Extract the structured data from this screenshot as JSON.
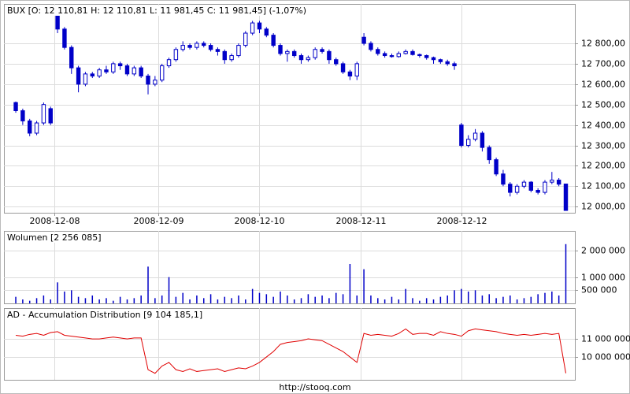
{
  "chart_data": [
    {
      "type": "candlestick",
      "title": "BUX [O: 12 110,81  H: 12 110,81  L: 11 981,45  C: 11 981,45] (-1,07%)",
      "color": "#0000c8",
      "x": [
        0,
        1,
        2,
        3,
        4,
        5,
        6,
        7,
        8,
        9,
        10,
        11,
        12,
        13,
        14,
        15,
        16,
        17,
        18,
        19,
        20,
        21,
        22,
        23,
        24,
        25,
        26,
        27,
        28,
        29,
        30,
        31,
        32,
        33,
        34,
        35,
        36,
        37,
        38,
        39,
        40,
        41,
        42,
        43,
        44,
        45,
        46,
        47,
        48,
        49,
        50,
        51,
        52,
        53,
        54,
        55,
        56,
        57,
        58,
        59,
        60,
        61,
        62,
        63,
        64,
        65,
        66,
        67,
        68,
        69,
        70,
        71,
        72,
        73,
        74,
        75,
        76,
        77,
        78,
        79
      ],
      "candles": [
        [
          12510,
          12515,
          12460,
          12470
        ],
        [
          12470,
          12480,
          12400,
          12420
        ],
        [
          12420,
          12430,
          12345,
          12360
        ],
        [
          12360,
          12420,
          12350,
          12410
        ],
        [
          12410,
          12510,
          12400,
          12500
        ],
        [
          12480,
          12490,
          12400,
          12410
        ],
        [
          12950,
          12960,
          12850,
          12870
        ],
        [
          12870,
          12880,
          12770,
          12780
        ],
        [
          12780,
          12790,
          12650,
          12680
        ],
        [
          12680,
          12690,
          12560,
          12600
        ],
        [
          12600,
          12660,
          12590,
          12650
        ],
        [
          12650,
          12660,
          12630,
          12640
        ],
        [
          12640,
          12680,
          12630,
          12670
        ],
        [
          12670,
          12690,
          12650,
          12660
        ],
        [
          12660,
          12710,
          12650,
          12700
        ],
        [
          12700,
          12710,
          12670,
          12690
        ],
        [
          12690,
          12700,
          12640,
          12650
        ],
        [
          12650,
          12690,
          12640,
          12680
        ],
        [
          12680,
          12690,
          12630,
          12640
        ],
        [
          12640,
          12650,
          12550,
          12600
        ],
        [
          12600,
          12640,
          12590,
          12620
        ],
        [
          12620,
          12700,
          12610,
          12690
        ],
        [
          12690,
          12730,
          12680,
          12720
        ],
        [
          12720,
          12780,
          12710,
          12770
        ],
        [
          12770,
          12810,
          12760,
          12790
        ],
        [
          12790,
          12800,
          12770,
          12780
        ],
        [
          12780,
          12810,
          12770,
          12800
        ],
        [
          12800,
          12810,
          12780,
          12790
        ],
        [
          12790,
          12800,
          12760,
          12770
        ],
        [
          12770,
          12780,
          12740,
          12760
        ],
        [
          12760,
          12770,
          12700,
          12720
        ],
        [
          12720,
          12750,
          12710,
          12740
        ],
        [
          12740,
          12800,
          12730,
          12790
        ],
        [
          12790,
          12860,
          12780,
          12850
        ],
        [
          12850,
          12910,
          12840,
          12900
        ],
        [
          12900,
          12910,
          12850,
          12870
        ],
        [
          12870,
          12880,
          12830,
          12840
        ],
        [
          12840,
          12850,
          12780,
          12790
        ],
        [
          12790,
          12800,
          12740,
          12750
        ],
        [
          12750,
          12770,
          12710,
          12760
        ],
        [
          12760,
          12770,
          12730,
          12740
        ],
        [
          12740,
          12750,
          12700,
          12720
        ],
        [
          12720,
          12740,
          12710,
          12730
        ],
        [
          12730,
          12780,
          12720,
          12770
        ],
        [
          12770,
          12780,
          12750,
          12760
        ],
        [
          12760,
          12770,
          12700,
          12720
        ],
        [
          12720,
          12730,
          12690,
          12700
        ],
        [
          12700,
          12710,
          12650,
          12660
        ],
        [
          12660,
          12670,
          12620,
          12640
        ],
        [
          12640,
          12710,
          12620,
          12700
        ],
        [
          12830,
          12850,
          12790,
          12800
        ],
        [
          12800,
          12810,
          12760,
          12770
        ],
        [
          12770,
          12780,
          12740,
          12750
        ],
        [
          12750,
          12760,
          12730,
          12740
        ],
        [
          12740,
          12750,
          12730,
          12735
        ],
        [
          12735,
          12760,
          12730,
          12750
        ],
        [
          12750,
          12770,
          12745,
          12760
        ],
        [
          12760,
          12770,
          12740,
          12745
        ],
        [
          12745,
          12750,
          12730,
          12740
        ],
        [
          12740,
          12745,
          12720,
          12730
        ],
        [
          12730,
          12735,
          12700,
          12720
        ],
        [
          12720,
          12725,
          12700,
          12710
        ],
        [
          12710,
          12720,
          12690,
          12700
        ],
        [
          12700,
          12710,
          12670,
          12690
        ],
        [
          12400,
          12410,
          12290,
          12300
        ],
        [
          12300,
          12350,
          12290,
          12330
        ],
        [
          12330,
          12380,
          12320,
          12360
        ],
        [
          12360,
          12370,
          12270,
          12290
        ],
        [
          12290,
          12300,
          12210,
          12230
        ],
        [
          12230,
          12240,
          12150,
          12160
        ],
        [
          12160,
          12180,
          12100,
          12110
        ],
        [
          12110,
          12120,
          12050,
          12070
        ],
        [
          12070,
          12110,
          12060,
          12100
        ],
        [
          12100,
          12130,
          12090,
          12120
        ],
        [
          12120,
          12125,
          12070,
          12080
        ],
        [
          12080,
          12090,
          12060,
          12070
        ],
        [
          12070,
          12130,
          12060,
          12120
        ],
        [
          12120,
          12170,
          12110,
          12130
        ],
        [
          12130,
          12140,
          12100,
          12110
        ],
        [
          12110.81,
          12110.81,
          11981.45,
          11981.45
        ]
      ],
      "xlim": [
        -1.7,
        80.3
      ],
      "xticks": [
        {
          "value": 5.5,
          "label": "2008-12-08"
        },
        {
          "value": 20.5,
          "label": "2008-12-09"
        },
        {
          "value": 35,
          "label": "2008-12-10"
        },
        {
          "value": 49.5,
          "label": "2008-12-11"
        },
        {
          "value": 64,
          "label": "2008-12-12"
        }
      ],
      "ylim": [
        11970,
        12993
      ],
      "yticks": [
        {
          "value": 12000,
          "label": "12 000,00"
        },
        {
          "value": 12100,
          "label": "12 100,00"
        },
        {
          "value": 12200,
          "label": "12 200,00"
        },
        {
          "value": 12300,
          "label": "12 300,00"
        },
        {
          "value": 12400,
          "label": "12 400,00"
        },
        {
          "value": 12500,
          "label": "12 500,00"
        },
        {
          "value": 12600,
          "label": "12 600,00"
        },
        {
          "value": 12700,
          "label": "12 700,00"
        },
        {
          "value": 12800,
          "label": "12 800,00"
        }
      ],
      "grid": true
    },
    {
      "type": "bar",
      "title": "Wolumen [2 256 085]",
      "color": "#0000c8",
      "values": [
        250000,
        150000,
        100000,
        200000,
        300000,
        150000,
        800000,
        450000,
        500000,
        250000,
        200000,
        300000,
        150000,
        200000,
        100000,
        250000,
        150000,
        200000,
        300000,
        1400000,
        200000,
        300000,
        1000000,
        250000,
        400000,
        150000,
        300000,
        200000,
        350000,
        150000,
        250000,
        200000,
        300000,
        150000,
        550000,
        400000,
        350000,
        250000,
        450000,
        300000,
        150000,
        200000,
        350000,
        250000,
        300000,
        200000,
        400000,
        350000,
        1500000,
        300000,
        1300000,
        300000,
        200000,
        150000,
        250000,
        150000,
        550000,
        200000,
        100000,
        200000,
        150000,
        250000,
        300000,
        500000,
        550000,
        450000,
        500000,
        300000,
        350000,
        200000,
        250000,
        300000,
        150000,
        200000,
        250000,
        350000,
        400000,
        450000,
        300000,
        2256085
      ],
      "ylim": [
        0,
        2760000
      ],
      "yticks": [
        {
          "value": 500000,
          "label": "500 000"
        },
        {
          "value": 1000000,
          "label": "1 000 000"
        },
        {
          "value": 2000000,
          "label": "2 000 000"
        }
      ],
      "grid": true
    },
    {
      "type": "line",
      "title": "AD - Accumulation Distribution [9 104 185,1]",
      "color": "#e00000",
      "values": [
        11200000,
        11150000,
        11250000,
        11300000,
        11200000,
        11350000,
        11400000,
        11200000,
        11150000,
        11100000,
        11050000,
        11000000,
        11000000,
        11050000,
        11100000,
        11050000,
        11000000,
        11050000,
        11050000,
        9300000,
        9100000,
        9500000,
        9700000,
        9300000,
        9200000,
        9350000,
        9200000,
        9250000,
        9300000,
        9350000,
        9200000,
        9300000,
        9400000,
        9350000,
        9500000,
        9700000,
        10000000,
        10300000,
        10700000,
        10800000,
        10850000,
        10900000,
        11000000,
        10950000,
        10900000,
        10700000,
        10500000,
        10300000,
        10000000,
        9700000,
        11300000,
        11200000,
        11250000,
        11200000,
        11150000,
        11300000,
        11550000,
        11250000,
        11300000,
        11300000,
        11200000,
        11400000,
        11300000,
        11250000,
        11150000,
        11450000,
        11550000,
        11500000,
        11450000,
        11400000,
        11300000,
        11250000,
        11200000,
        11250000,
        11200000,
        11250000,
        11300000,
        11250000,
        11300000,
        9104185.1
      ],
      "ylim": [
        8740000,
        12700000
      ],
      "yticks": [
        {
          "value": 10000000,
          "label": "10 000 000"
        },
        {
          "value": 11000000,
          "label": "11 000 000"
        }
      ],
      "grid": true
    }
  ],
  "footer": "http://stooq.com"
}
